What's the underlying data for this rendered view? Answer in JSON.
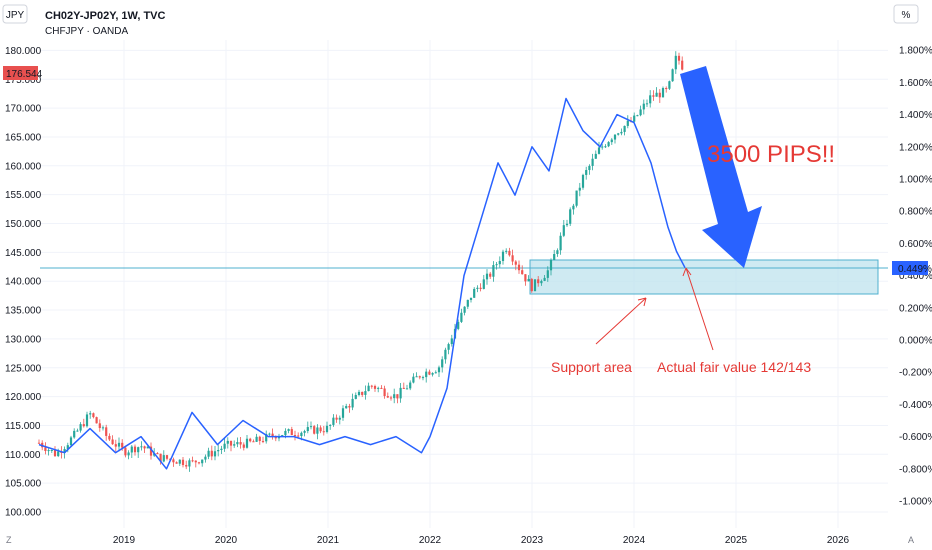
{
  "header": {
    "left_unit": "JPY",
    "right_unit": "%",
    "title": "CH02Y-JP02Y, 1W, TVC",
    "subtitle": "CHFJPY · OANDA",
    "bottom_left": "Z",
    "bottom_right": "A"
  },
  "colors": {
    "candle_up": "#26a69a",
    "candle_down": "#ef5350",
    "yield_line": "#2962ff",
    "zone_fill": "#bfe3ee",
    "zone_border": "#4fb0cf",
    "annotation": "#e53935",
    "arrow": "#2962ff",
    "price_badge": "#e8504f"
  },
  "chart_data": [
    {
      "type": "candlestick",
      "series_name": "CHFJPY · OANDA",
      "axis": "left",
      "ylim": [
        100,
        180
      ],
      "x_ticks": [
        "2019",
        "2020",
        "2021",
        "2022",
        "2023",
        "2024",
        "2025",
        "2026"
      ],
      "y_ticks": [
        "100.000",
        "105.000",
        "110.000",
        "115.000",
        "120.000",
        "125.000",
        "130.000",
        "135.000",
        "140.000",
        "145.000",
        "150.000",
        "155.000",
        "160.000",
        "165.000",
        "170.000",
        "175.000",
        "180.000"
      ],
      "current_price": "176.544",
      "path_points": [
        [
          "2018-03",
          112.0
        ],
        [
          "2018-05",
          110.0
        ],
        [
          "2018-07",
          113.0
        ],
        [
          "2018-09",
          117.0
        ],
        [
          "2018-11",
          113.0
        ],
        [
          "2019-01",
          110.5
        ],
        [
          "2019-03",
          111.5
        ],
        [
          "2019-05",
          109.5
        ],
        [
          "2019-07",
          109.0
        ],
        [
          "2019-09",
          108.5
        ],
        [
          "2019-11",
          110.0
        ],
        [
          "2020-01",
          111.5
        ],
        [
          "2020-04",
          112.0
        ],
        [
          "2020-07",
          113.5
        ],
        [
          "2020-10",
          114.0
        ],
        [
          "2021-01",
          114.5
        ],
        [
          "2021-03",
          118.0
        ],
        [
          "2021-06",
          122.0
        ],
        [
          "2021-09",
          120.0
        ],
        [
          "2021-12",
          124.0
        ],
        [
          "2022-02",
          125.0
        ],
        [
          "2022-04",
          132.0
        ],
        [
          "2022-06",
          138.0
        ],
        [
          "2022-08",
          141.0
        ],
        [
          "2022-10",
          146.0
        ],
        [
          "2022-12",
          141.0
        ],
        [
          "2023-01",
          139.0
        ],
        [
          "2023-03",
          142.0
        ],
        [
          "2023-05",
          150.0
        ],
        [
          "2023-07",
          158.0
        ],
        [
          "2023-09",
          163.0
        ],
        [
          "2023-11",
          166.0
        ],
        [
          "2024-01",
          168.0
        ],
        [
          "2024-03",
          172.0
        ],
        [
          "2024-05",
          173.0
        ],
        [
          "2024-06",
          179.0
        ],
        [
          "2024-07",
          176.5
        ]
      ]
    },
    {
      "type": "line",
      "series_name": "CH02Y-JP02Y",
      "axis": "right",
      "unit": "%",
      "ylim": [
        -1.0,
        1.8
      ],
      "y_ticks": [
        "-1.000%",
        "-0.800%",
        "-0.600%",
        "-0.400%",
        "-0.200%",
        "0.000%",
        "0.200%",
        "0.400%",
        "0.600%",
        "0.800%",
        "1.000%",
        "1.200%",
        "1.400%",
        "1.600%",
        "1.800%"
      ],
      "current_value": "0.449%",
      "points": [
        [
          "2018-03",
          -0.65
        ],
        [
          "2018-06",
          -0.7
        ],
        [
          "2018-09",
          -0.55
        ],
        [
          "2018-12",
          -0.7
        ],
        [
          "2019-03",
          -0.6
        ],
        [
          "2019-06",
          -0.8
        ],
        [
          "2019-09",
          -0.45
        ],
        [
          "2019-12",
          -0.65
        ],
        [
          "2020-03",
          -0.5
        ],
        [
          "2020-06",
          -0.6
        ],
        [
          "2020-09",
          -0.6
        ],
        [
          "2020-12",
          -0.65
        ],
        [
          "2021-03",
          -0.6
        ],
        [
          "2021-06",
          -0.65
        ],
        [
          "2021-09",
          -0.6
        ],
        [
          "2021-12",
          -0.7
        ],
        [
          "2022-01",
          -0.6
        ],
        [
          "2022-03",
          -0.3
        ],
        [
          "2022-05",
          0.4
        ],
        [
          "2022-07",
          0.75
        ],
        [
          "2022-09",
          1.1
        ],
        [
          "2022-11",
          0.9
        ],
        [
          "2023-01",
          1.2
        ],
        [
          "2023-03",
          1.05
        ],
        [
          "2023-05",
          1.5
        ],
        [
          "2023-07",
          1.3
        ],
        [
          "2023-09",
          1.2
        ],
        [
          "2023-11",
          1.4
        ],
        [
          "2024-01",
          1.35
        ],
        [
          "2024-03",
          1.1
        ],
        [
          "2024-05",
          0.7
        ],
        [
          "2024-06",
          0.55
        ],
        [
          "2024-07",
          0.449
        ]
      ]
    }
  ],
  "annotations": {
    "pips": "3500 PIPS!!",
    "support": "Support area",
    "fair_value": "Actual fair value 142/143"
  }
}
